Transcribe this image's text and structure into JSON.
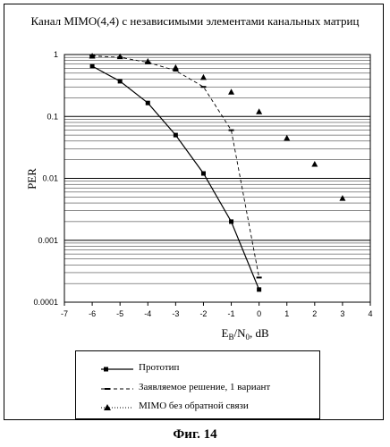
{
  "title": "Канал MIMO(4,4) с независимыми элементами канальных матриц",
  "figure_caption": "Фиг. 14",
  "chart_data": {
    "type": "line",
    "title": "Канал MIMO(4,4) с независимыми элементами канальных матриц",
    "xlabel": "Eb/N0, dB",
    "xlabel_parts": {
      "main": "E",
      "sub1": "B",
      "mid": "/N",
      "sub2": "0",
      "tail": ", dB"
    },
    "ylabel": "PER",
    "xlim": [
      -7,
      4
    ],
    "ylim": [
      0.0001,
      1
    ],
    "yscale": "log",
    "grid": true,
    "x_ticks": [
      "-7",
      "-6",
      "-5",
      "-4",
      "-3",
      "-2",
      "-1",
      "0",
      "1",
      "2",
      "3",
      "4"
    ],
    "y_ticks": [
      "0.0001",
      "0.001",
      "0.01",
      "0.1",
      "1"
    ],
    "legend_position": "bottom",
    "series": [
      {
        "name": "Прототип",
        "marker": "square",
        "line": "solid",
        "x": [
          -6,
          -5,
          -4,
          -3,
          -2,
          -1,
          0
        ],
        "y": [
          0.65,
          0.37,
          0.165,
          0.05,
          0.012,
          0.002,
          0.00016
        ]
      },
      {
        "name": "Заявляемое решение, 1 вариант",
        "marker": "dash",
        "line": "dashed",
        "x": [
          -6,
          -5,
          -4,
          -3,
          -2,
          -1,
          0
        ],
        "y": [
          0.95,
          0.9,
          0.75,
          0.55,
          0.3,
          0.06,
          0.00025
        ]
      },
      {
        "name": "MIMO без обратной связи",
        "marker": "triangle",
        "line": "none",
        "x": [
          -6,
          -5,
          -4,
          -3,
          -2,
          -1,
          0,
          1,
          2,
          3
        ],
        "y": [
          0.95,
          0.93,
          0.78,
          0.62,
          0.43,
          0.25,
          0.12,
          0.045,
          0.017,
          0.0048
        ]
      }
    ]
  }
}
